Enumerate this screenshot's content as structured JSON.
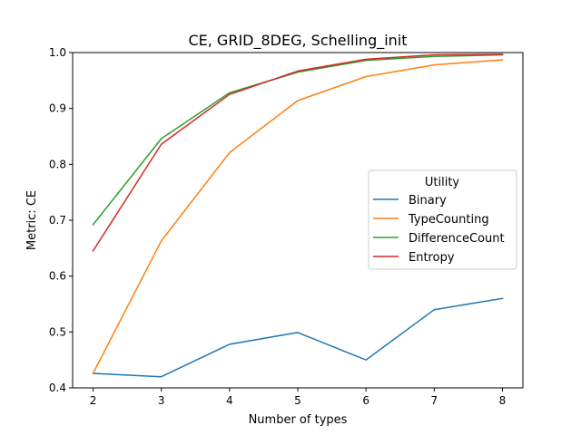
{
  "chart_data": {
    "type": "line",
    "title": "CE, GRID_8DEG, Schelling_init",
    "xlabel": "Number of types",
    "ylabel": "Metric: CE",
    "x": [
      2,
      3,
      4,
      5,
      6,
      7,
      8
    ],
    "xlim": [
      1.7,
      8.3
    ],
    "ylim": [
      0.4,
      1.0
    ],
    "xticks": [
      "2",
      "3",
      "4",
      "5",
      "6",
      "7",
      "8"
    ],
    "yticks": [
      "0.4",
      "0.5",
      "0.6",
      "0.7",
      "0.8",
      "0.9",
      "1.0"
    ],
    "grid": false,
    "legend": {
      "title": "Utility",
      "placement": "center-right"
    },
    "series": [
      {
        "name": "Binary",
        "color": "#1f77b4",
        "values": [
          0.426,
          0.42,
          0.478,
          0.499,
          0.45,
          0.54,
          0.56
        ]
      },
      {
        "name": "TypeCounting",
        "color": "#ff7f0e",
        "values": [
          0.426,
          0.663,
          0.821,
          0.914,
          0.957,
          0.978,
          0.987
        ]
      },
      {
        "name": "DifferenceCount",
        "color": "#2ca02c",
        "values": [
          0.692,
          0.846,
          0.928,
          0.965,
          0.986,
          0.993,
          0.996
        ]
      },
      {
        "name": "Entropy",
        "color": "#d62728",
        "values": [
          0.645,
          0.836,
          0.925,
          0.967,
          0.988,
          0.996,
          0.997
        ]
      }
    ]
  }
}
